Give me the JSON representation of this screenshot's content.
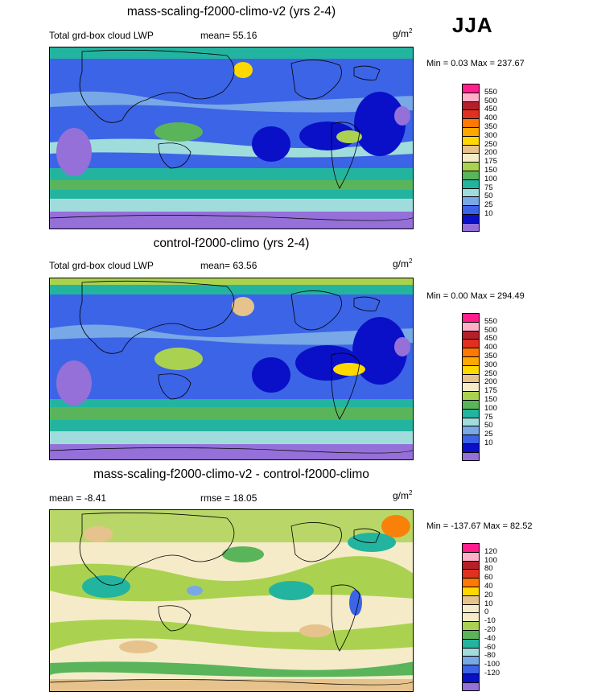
{
  "season": "JJA",
  "panels": [
    {
      "id": "mass_scaling",
      "title": "mass-scaling-f2000-climo-v2 (yrs 2-4)",
      "left_label": "Total grd-box cloud LWP",
      "mid_label": "mean=  55.16",
      "unit_base": "g/m",
      "unit_exp": "2",
      "minmax": "Min =   0.03 Max = 237.67",
      "palette": "abs"
    },
    {
      "id": "control",
      "title": "control-f2000-climo (yrs 2-4)",
      "left_label": "Total grd-box cloud LWP",
      "mid_label": "mean=  63.56",
      "unit_base": "g/m",
      "unit_exp": "2",
      "minmax": "Min =   0.00 Max = 294.49",
      "palette": "abs"
    },
    {
      "id": "diff",
      "title": "mass-scaling-f2000-climo-v2 - control-f2000-climo",
      "left_label": "mean =  -8.41",
      "mid_label": "rmse =  18.05",
      "unit_base": "g/m",
      "unit_exp": "2",
      "minmax": "Min = -137.67 Max =  82.52",
      "palette": "diff"
    }
  ],
  "colorbars": {
    "abs": {
      "labels": [
        "550",
        "500",
        "450",
        "400",
        "350",
        "300",
        "250",
        "200",
        "175",
        "150",
        "100",
        "75",
        "50",
        "25",
        "10"
      ],
      "colors": [
        "#ff1e8c",
        "#ffb0c8",
        "#b4202a",
        "#e03020",
        "#ff7800",
        "#ffa800",
        "#ffd800",
        "#e6c38c",
        "#f5ebc8",
        "#aad250",
        "#5ab45a",
        "#23b4a0",
        "#a0dcdc",
        "#78a8e6",
        "#3c64e6",
        "#0a10c8",
        "#9470d8"
      ]
    },
    "diff": {
      "labels": [
        "120",
        "100",
        "80",
        "60",
        "40",
        "20",
        "10",
        "0",
        "-10",
        "-20",
        "-40",
        "-60",
        "-80",
        "-100",
        "-120"
      ],
      "colors": [
        "#ff1e8c",
        "#ffb0c8",
        "#b4202a",
        "#e03020",
        "#ff7800",
        "#ffd800",
        "#e6c38c",
        "#f5ebc8",
        "#f5ebc8",
        "#aad250",
        "#5ab45a",
        "#23b4a0",
        "#a0dcdc",
        "#78a8e6",
        "#3c64e6",
        "#0a10c8",
        "#9470d8"
      ]
    }
  }
}
